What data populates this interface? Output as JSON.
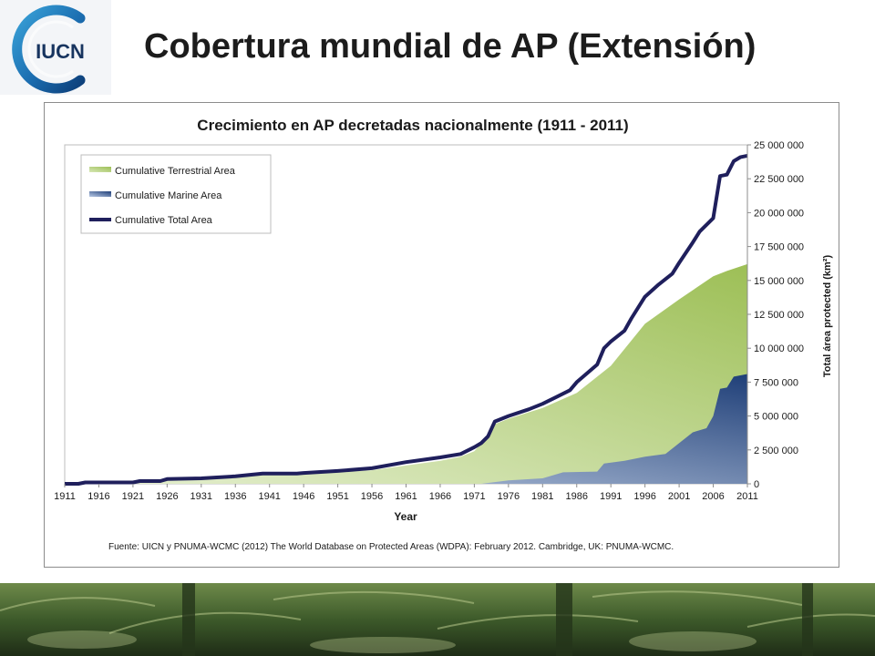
{
  "logo_text": "IUCN",
  "slide_title": "Cobertura mundial de AP (Extensión)",
  "source_note": "Fuente: UICN y PNUMA-WCMC (2012) The World Database on Protected Areas (WDPA): February 2012. Cambridge, UK: PNUMA-WCMC.",
  "colors": {
    "terrestrial_light": "#e6f0d2",
    "terrestrial_dark": "#9dbf56",
    "marine_light": "#c9d6ea",
    "marine_dark": "#1f3f78",
    "total_line": "#1f1f5c",
    "title_text": "#1c1c1c"
  },
  "chart_data": {
    "type": "area",
    "title": "Crecimiento en AP decretadas nacionalmente (1911 - 2011)",
    "xlabel": "Year",
    "ylabel": "Total  área protected  (km²)",
    "xlim": [
      1911,
      2011
    ],
    "ylim": [
      0,
      25000000
    ],
    "x_ticks": [
      "1911",
      "1916",
      "1921",
      "1926",
      "1931",
      "1936",
      "1941",
      "1946",
      "1951",
      "1956",
      "1961",
      "1966",
      "1971",
      "1976",
      "1981",
      "1986",
      "1991",
      "1996",
      "2001",
      "2006",
      "2011"
    ],
    "y_ticks": [
      "0",
      "2 500 000",
      "5 000 000",
      "7 500 000",
      "10 000 000",
      "12 500 000",
      "15 000 000",
      "17 500 000",
      "20 000 000",
      "22 500 000",
      "25 000 000"
    ],
    "grid": false,
    "legend_position": "top-left",
    "series": [
      {
        "name": "Cumulative Terrestrial Area",
        "kind": "area",
        "points": [
          [
            1911,
            100000
          ],
          [
            1916,
            200000
          ],
          [
            1921,
            200000
          ],
          [
            1923,
            300000
          ],
          [
            1926,
            350000
          ],
          [
            1931,
            450000
          ],
          [
            1936,
            550000
          ],
          [
            1941,
            700000
          ],
          [
            1946,
            750000
          ],
          [
            1951,
            850000
          ],
          [
            1956,
            1000000
          ],
          [
            1961,
            1350000
          ],
          [
            1966,
            1700000
          ],
          [
            1969,
            2000000
          ],
          [
            1971,
            2400000
          ],
          [
            1973,
            3600000
          ],
          [
            1974,
            4400000
          ],
          [
            1976,
            4800000
          ],
          [
            1981,
            5600000
          ],
          [
            1986,
            6700000
          ],
          [
            1991,
            8700000
          ],
          [
            1996,
            11800000
          ],
          [
            2001,
            13600000
          ],
          [
            2006,
            15300000
          ],
          [
            2008,
            15700000
          ],
          [
            2011,
            16200000
          ]
        ]
      },
      {
        "name": "Cumulative Marine Area",
        "kind": "area",
        "points": [
          [
            1911,
            0
          ],
          [
            1972,
            0
          ],
          [
            1976,
            250000
          ],
          [
            1981,
            400000
          ],
          [
            1984,
            850000
          ],
          [
            1989,
            900000
          ],
          [
            1990,
            1500000
          ],
          [
            1993,
            1700000
          ],
          [
            1996,
            2000000
          ],
          [
            1999,
            2200000
          ],
          [
            2003,
            3800000
          ],
          [
            2005,
            4100000
          ],
          [
            2006,
            5000000
          ],
          [
            2007,
            7000000
          ],
          [
            2008,
            7100000
          ],
          [
            2009,
            7900000
          ],
          [
            2011,
            8100000
          ]
        ]
      },
      {
        "name": "Cumulative Total Area",
        "kind": "line",
        "points": [
          [
            1911,
            0
          ],
          [
            1913,
            0
          ],
          [
            1914,
            100000
          ],
          [
            1921,
            100000
          ],
          [
            1922,
            200000
          ],
          [
            1925,
            200000
          ],
          [
            1926,
            350000
          ],
          [
            1931,
            400000
          ],
          [
            1936,
            550000
          ],
          [
            1940,
            750000
          ],
          [
            1945,
            750000
          ],
          [
            1946,
            800000
          ],
          [
            1951,
            950000
          ],
          [
            1956,
            1150000
          ],
          [
            1961,
            1600000
          ],
          [
            1966,
            1950000
          ],
          [
            1969,
            2200000
          ],
          [
            1971,
            2700000
          ],
          [
            1972,
            3000000
          ],
          [
            1973,
            3500000
          ],
          [
            1974,
            4600000
          ],
          [
            1976,
            5000000
          ],
          [
            1979,
            5500000
          ],
          [
            1981,
            5900000
          ],
          [
            1983,
            6400000
          ],
          [
            1985,
            6900000
          ],
          [
            1986,
            7500000
          ],
          [
            1989,
            8800000
          ],
          [
            1990,
            10000000
          ],
          [
            1991,
            10500000
          ],
          [
            1993,
            11300000
          ],
          [
            1994,
            12200000
          ],
          [
            1996,
            13800000
          ],
          [
            1998,
            14700000
          ],
          [
            2000,
            15500000
          ],
          [
            2001,
            16300000
          ],
          [
            2003,
            17800000
          ],
          [
            2004,
            18600000
          ],
          [
            2006,
            19600000
          ],
          [
            2007,
            22700000
          ],
          [
            2008,
            22800000
          ],
          [
            2009,
            23800000
          ],
          [
            2010,
            24100000
          ],
          [
            2011,
            24200000
          ]
        ]
      }
    ]
  }
}
